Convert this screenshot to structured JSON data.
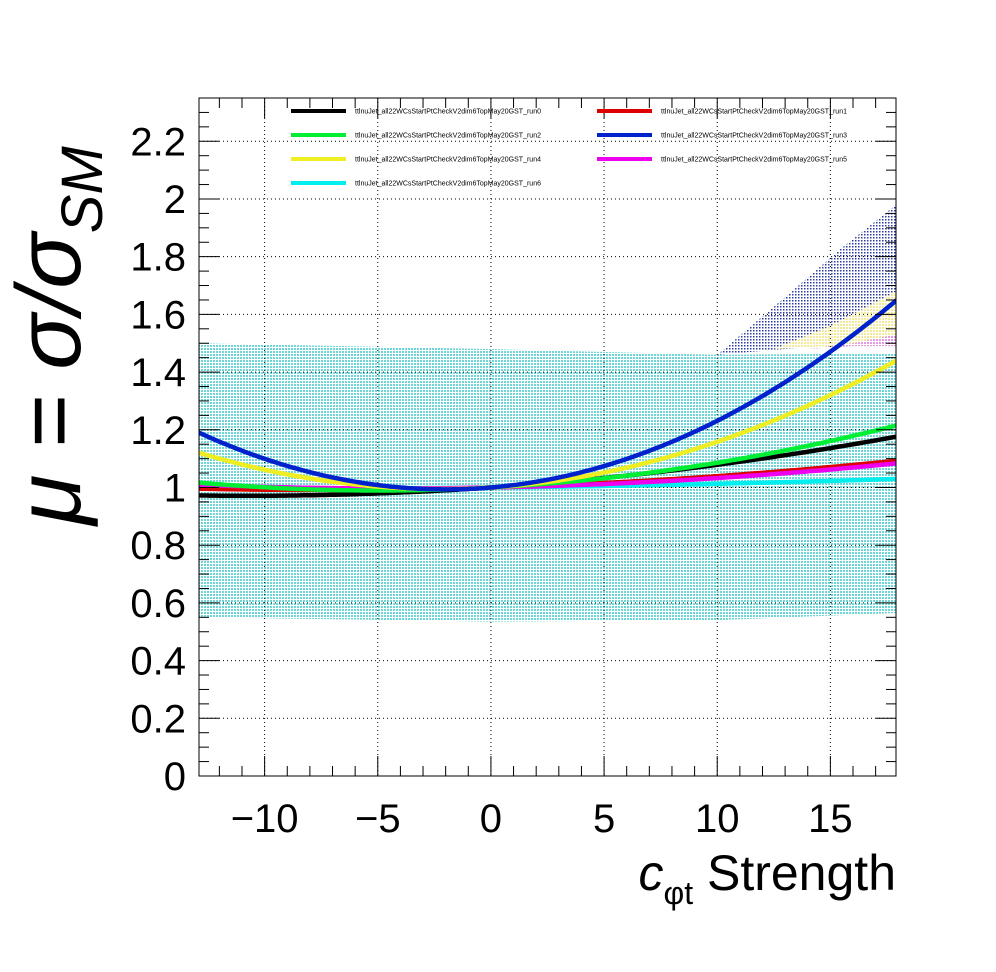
{
  "chart_data": {
    "type": "line",
    "title": "",
    "xlabel": {
      "main": "c",
      "sub": "φt",
      "suffix": " Strength"
    },
    "ylabel": {
      "prefix": "μ = σ/σ",
      "sub": "SM"
    },
    "xlim": [
      -12.9,
      17.9
    ],
    "ylim": [
      0,
      2.35
    ],
    "xticks": [
      -10,
      -5,
      0,
      5,
      10,
      15
    ],
    "xtick_labels": [
      "−10",
      "−5",
      "0",
      "5",
      "10",
      "15"
    ],
    "yticks": [
      0,
      0.2,
      0.4,
      0.6,
      0.8,
      1,
      1.2,
      1.4,
      1.6,
      1.8,
      2,
      2.2
    ],
    "ytick_labels": [
      "0",
      "0.2",
      "0.4",
      "0.6",
      "0.8",
      "1",
      "1.2",
      "1.4",
      "1.6",
      "1.8",
      "2",
      "2.2"
    ],
    "grid": true,
    "legend_position": "top",
    "series": [
      {
        "name": "ttlnuJet_all22WCsStartPtCheckV2dim6TopMay20GST_run0",
        "color": "#000000",
        "a": 0.00025,
        "b": 0.00536
      },
      {
        "name": "ttlnuJet_all22WCsStartPtCheckV2dim6TopMay20GST_run1",
        "color": "#dd0000",
        "a": 0.000158,
        "b": 0.00235
      },
      {
        "name": "ttlnuJet_all22WCsStartPtCheckV2dim6TopMay20GST_run2",
        "color": "#00ee33",
        "a": 0.000432,
        "b": 0.00426
      },
      {
        "name": "ttlnuJet_all22WCsStartPtCheckV2dim6TopMay20GST_run3",
        "color": "#0022cc",
        "a": 0.001653,
        "b": 0.00659
      },
      {
        "name": "ttlnuJet_all22WCsStartPtCheckV2dim6TopMay20GST_run4",
        "color": "#eeee22",
        "a": 0.0011,
        "b": 0.00485
      },
      {
        "name": "ttlnuJet_all22WCsStartPtCheckV2dim6TopMay20GST_run5",
        "color": "#ee00ee",
        "a": 0.000175,
        "b": 0.00153
      },
      {
        "name": "ttlnuJet_all22WCsStartPtCheckV2dim6TopMay20GST_run6",
        "color": "#00eeee",
        "a": 4.88e-05,
        "b": 0.000794
      }
    ],
    "bands": [
      {
        "series": "run6",
        "color": "#80d8d8",
        "points": [
          [
            -12.9,
            0.55,
            1.5
          ],
          [
            0,
            0.535,
            1.48
          ],
          [
            10,
            0.54,
            1.46
          ],
          [
            17.9,
            0.565,
            1.465
          ]
        ]
      },
      {
        "series": "run3",
        "color": "#3344aa",
        "points": [
          [
            10,
            1.46,
            1.46
          ],
          [
            13,
            1.48,
            1.66
          ],
          [
            15.5,
            1.5,
            1.83
          ],
          [
            17.9,
            1.52,
            1.98
          ]
        ]
      },
      {
        "series": "run4",
        "color": "#f5f0a8",
        "points": [
          [
            12.5,
            1.48,
            1.48
          ],
          [
            15,
            1.49,
            1.56
          ],
          [
            17.9,
            1.49,
            1.68
          ]
        ]
      },
      {
        "series": "run5",
        "color": "#e8a0e8",
        "points": [
          [
            14,
            1.48,
            1.48
          ],
          [
            16,
            1.49,
            1.5
          ],
          [
            17.9,
            1.49,
            1.53
          ]
        ]
      }
    ]
  }
}
